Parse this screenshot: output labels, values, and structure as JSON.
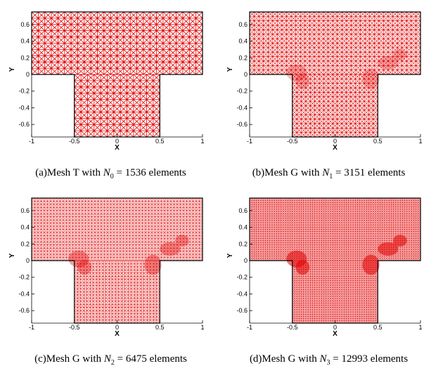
{
  "figure": {
    "panels": [
      {
        "id": "a",
        "mesh_type": "T",
        "caption_prefix": "(a)Mesh T with ",
        "n_symbol": "N",
        "n_index": "0",
        "caption_eq": " = 1536 elements",
        "elements": 1536,
        "refined": false
      },
      {
        "id": "b",
        "mesh_type": "G",
        "caption_prefix": "(b)Mesh G with ",
        "n_symbol": "N",
        "n_index": "1",
        "caption_eq": " = 3151 elements",
        "elements": 3151,
        "refined": true
      },
      {
        "id": "c",
        "mesh_type": "G",
        "caption_prefix": "(c)Mesh G with ",
        "n_symbol": "N",
        "n_index": "2",
        "caption_eq": " = 6475 elements",
        "elements": 6475,
        "refined": true
      },
      {
        "id": "d",
        "mesh_type": "G",
        "caption_prefix": "(d)Mesh G with ",
        "n_symbol": "N",
        "n_index": "3",
        "caption_eq": " = 12993 elements",
        "elements": 12993,
        "refined": true
      }
    ],
    "axes": {
      "xlabel": "X",
      "ylabel": "Y",
      "x_ticks": [
        "-1",
        "-0.5",
        "0",
        "0.5",
        "1"
      ],
      "x_tick_values": [
        -1,
        -0.5,
        0,
        0.5,
        1
      ],
      "y_ticks": [
        "-0.6",
        "-0.4",
        "-0.2",
        "0",
        "0.2",
        "0.4",
        "0.6"
      ],
      "y_tick_values": [
        -0.6,
        -0.4,
        -0.2,
        0,
        0.2,
        0.4,
        0.6
      ],
      "xlim": [
        -1,
        1
      ],
      "ylim": [
        -0.75,
        0.75
      ]
    },
    "domain": {
      "top_region": {
        "x": [
          -1,
          1
        ],
        "y": [
          0,
          0.75
        ]
      },
      "stem_region": {
        "x": [
          -0.5,
          0.5
        ],
        "y": [
          -0.75,
          0
        ]
      }
    },
    "colors": {
      "mesh": "#e00000",
      "boundary": "#000000",
      "background": "#ffffff"
    }
  }
}
